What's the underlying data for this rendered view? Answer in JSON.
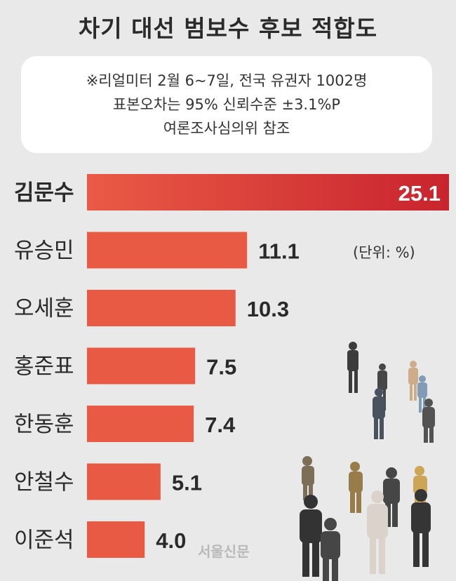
{
  "chart_data": {
    "type": "bar",
    "title": "차기 대선 범보수 후보 적합도",
    "note_lines": [
      "※리얼미터 2월 6~7일, 전국 유권자 1002명",
      "표본오차는 95% 신뢰수준 ±3.1%P",
      "여론조사심의위 참조"
    ],
    "unit_label": "(단위: %)",
    "categories": [
      "김문수",
      "유승민",
      "오세훈",
      "홍준표",
      "한동훈",
      "안철수",
      "이준석"
    ],
    "values": [
      25.1,
      11.1,
      10.3,
      7.5,
      7.4,
      5.1,
      4.0
    ],
    "value_labels": [
      "25.1",
      "11.1",
      "10.3",
      "7.5",
      "7.4",
      "5.1",
      "4.0"
    ],
    "highlight_index": 0,
    "xlim": [
      0,
      25.1
    ],
    "colors": {
      "bar": "#e85a43",
      "highlight_start": "#ea5a45",
      "highlight_end": "#c8242e",
      "text": "#2a2a2a"
    }
  },
  "source_logo": "서울신문"
}
